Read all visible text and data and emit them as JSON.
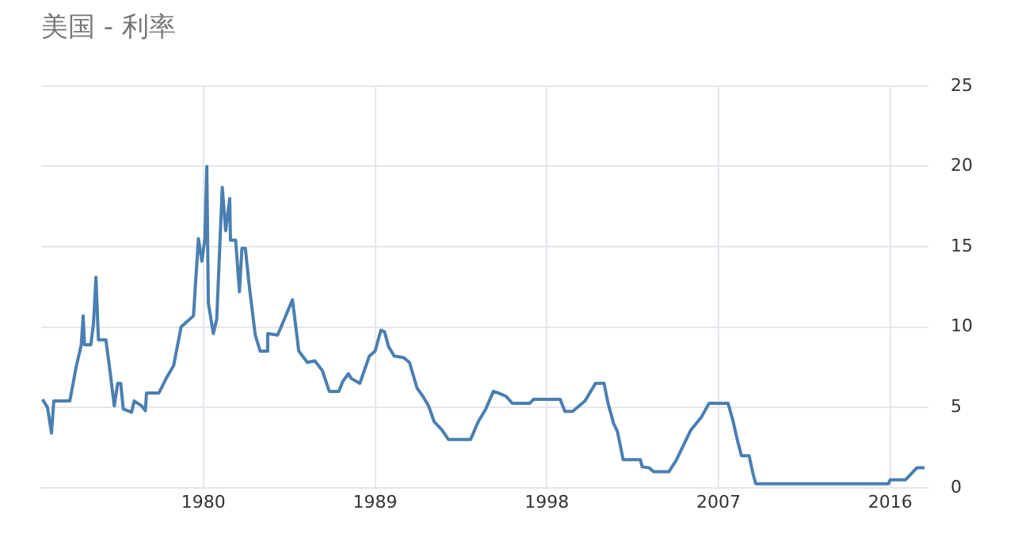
{
  "chart_data": {
    "type": "line",
    "title": "美国 - 利率",
    "x": [
      1971.57,
      1971.83,
      1972.04,
      1972.16,
      1973.0,
      1973.33,
      1973.6,
      1973.7,
      1973.77,
      1974.1,
      1974.24,
      1974.37,
      1974.5,
      1974.89,
      1975.07,
      1975.33,
      1975.51,
      1975.67,
      1975.8,
      1976.24,
      1976.37,
      1976.76,
      1976.96,
      1977.02,
      1977.67,
      1978.05,
      1978.44,
      1978.83,
      1979.48,
      1979.74,
      1979.92,
      1980.08,
      1980.18,
      1980.26,
      1980.52,
      1980.7,
      1980.99,
      1981.17,
      1981.38,
      1981.42,
      1981.69,
      1981.89,
      1982.02,
      1982.2,
      1982.41,
      1982.72,
      1982.98,
      1983.32,
      1983.37,
      1983.89,
      1984.28,
      1984.67,
      1985.0,
      1985.45,
      1985.84,
      1986.23,
      1986.6,
      1987.1,
      1987.3,
      1987.6,
      1987.75,
      1988.2,
      1988.7,
      1989.0,
      1989.3,
      1989.5,
      1989.7,
      1990.0,
      1990.5,
      1990.8,
      1991.2,
      1991.5,
      1991.8,
      1992.1,
      1992.5,
      1992.85,
      1994.0,
      1994.4,
      1994.8,
      1995.2,
      1995.45,
      1995.85,
      1996.2,
      1997.1,
      1997.3,
      1998.7,
      1998.95,
      1999.35,
      2000.0,
      2000.3,
      2000.55,
      2001.0,
      2001.2,
      2001.5,
      2001.7,
      2002.0,
      2002.9,
      2003.0,
      2003.35,
      2003.6,
      2004.4,
      2004.8,
      2005.55,
      2006.1,
      2006.5,
      2007.5,
      2007.75,
      2008.0,
      2008.2,
      2008.6,
      2008.8,
      2008.95,
      2015.9,
      2016.0,
      2016.8,
      2017.0,
      2017.4,
      2017.8
    ],
    "series": [
      {
        "color": "#4a7fb0",
        "values": [
          5.5,
          5.0,
          3.4,
          5.4,
          5.4,
          7.5,
          8.9,
          10.7,
          8.9,
          8.9,
          10.2,
          13.1,
          9.2,
          9.2,
          7.6,
          5.1,
          6.5,
          6.5,
          4.9,
          4.7,
          5.4,
          5.1,
          4.8,
          5.9,
          5.9,
          6.8,
          7.6,
          10.0,
          10.7,
          15.5,
          14.1,
          15.5,
          20.0,
          11.5,
          9.6,
          10.5,
          18.7,
          16.0,
          18.0,
          15.4,
          15.4,
          12.2,
          14.9,
          14.9,
          12.5,
          9.5,
          8.5,
          8.5,
          9.6,
          9.5,
          10.6,
          11.7,
          8.5,
          7.8,
          7.9,
          7.3,
          6.0,
          6.0,
          6.6,
          7.1,
          6.8,
          6.5,
          8.2,
          8.5,
          9.8,
          9.7,
          8.8,
          8.2,
          8.1,
          7.8,
          6.2,
          5.7,
          5.1,
          4.1,
          3.6,
          3.0,
          3.0,
          4.1,
          4.9,
          6.0,
          5.9,
          5.7,
          5.25,
          5.25,
          5.5,
          5.5,
          4.75,
          4.75,
          5.4,
          6.0,
          6.5,
          6.5,
          5.3,
          4.0,
          3.5,
          1.75,
          1.75,
          1.3,
          1.25,
          1.0,
          1.0,
          1.75,
          3.6,
          4.4,
          5.25,
          5.25,
          4.2,
          2.9,
          2.0,
          2.0,
          0.9,
          0.25,
          0.25,
          0.5,
          0.5,
          0.75,
          1.25,
          1.25
        ]
      }
    ],
    "xlim": [
      1971.5,
      2018
    ],
    "xticks": [
      1980,
      1989,
      1998,
      2007,
      2016
    ],
    "ylim": [
      0,
      25
    ],
    "yticks": [
      0,
      5,
      10,
      15,
      20,
      25
    ],
    "grid": true,
    "legend": false,
    "marker": "none",
    "line_style": "solid"
  }
}
